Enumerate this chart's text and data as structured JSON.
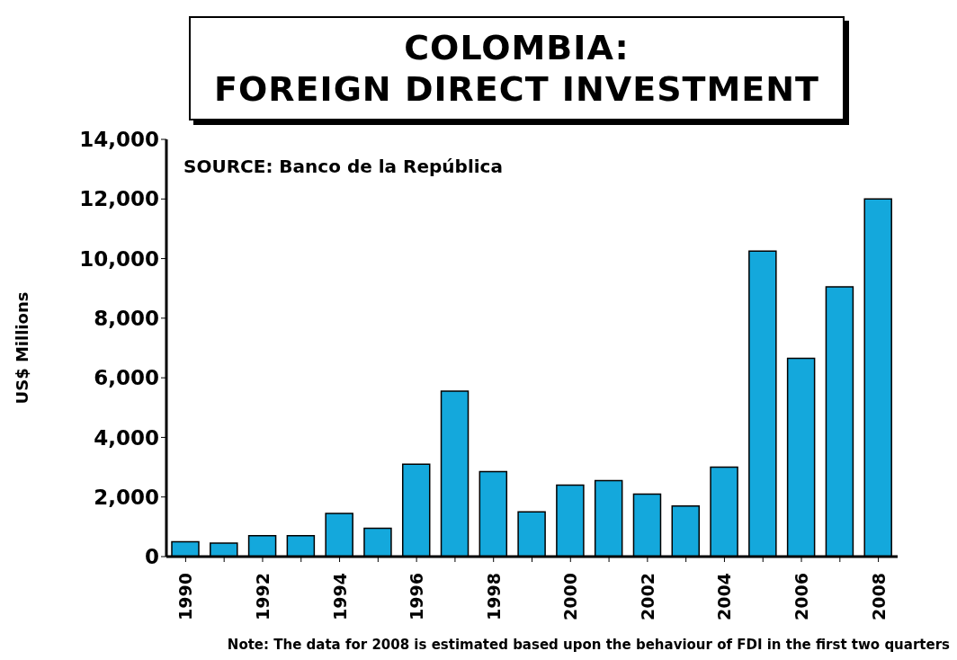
{
  "chart_data": {
    "type": "bar",
    "title": "COLOMBIA:\nFOREIGN DIRECT INVESTMENT",
    "ylabel": "US$ Millions",
    "categories": [
      "1990",
      null,
      "1992",
      null,
      "1994",
      null,
      "1996",
      null,
      "1998",
      null,
      "2000",
      null,
      "2002",
      null,
      "2004",
      null,
      "2006",
      null,
      "2008"
    ],
    "values": [
      500,
      450,
      700,
      700,
      1450,
      950,
      3100,
      5550,
      2850,
      1500,
      2400,
      2550,
      2100,
      1700,
      3000,
      10250,
      6650,
      9050,
      12000
    ],
    "color": "#14a8dc",
    "ylim": [
      0,
      14000
    ],
    "yticks": [
      0,
      {
        "value": 2000,
        "label": "2,000"
      },
      {
        "value": 4000,
        "label": "4,000"
      },
      {
        "value": 6000,
        "label": "6,000"
      },
      {
        "value": 8000,
        "label": "8,000"
      },
      {
        "value": 10000,
        "label": "10,000"
      },
      {
        "value": 12000,
        "label": "12,000"
      },
      {
        "value": 14000,
        "label": "14,000"
      }
    ],
    "annotations": [
      "SOURCE: Banco de la República",
      "Note: The data for 2008 is estimated based upon the behaviour of FDI in the first two quarters"
    ]
  }
}
